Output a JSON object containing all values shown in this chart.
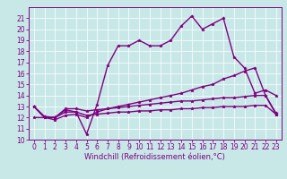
{
  "title": "",
  "xlabel": "Windchill (Refroidissement éolien,°C)",
  "ylabel": "",
  "background_color": "#c8e8e8",
  "line_color": "#800080",
  "xlim": [
    -0.5,
    23.5
  ],
  "ylim": [
    10,
    22
  ],
  "yticks": [
    10,
    11,
    12,
    13,
    14,
    15,
    16,
    17,
    18,
    19,
    20,
    21
  ],
  "xticks": [
    0,
    1,
    2,
    3,
    4,
    5,
    6,
    7,
    8,
    9,
    10,
    11,
    12,
    13,
    14,
    15,
    16,
    17,
    18,
    19,
    20,
    21,
    22,
    23
  ],
  "lines": [
    {
      "x": [
        0,
        1,
        2,
        3,
        4,
        5,
        6,
        7,
        8,
        9,
        10,
        11,
        12,
        13,
        14,
        15,
        16,
        17,
        18,
        19,
        20,
        21,
        22,
        23
      ],
      "y": [
        13,
        12,
        12,
        12.7,
        12.5,
        10.5,
        13.2,
        16.7,
        18.5,
        18.5,
        19,
        18.5,
        18.5,
        19,
        20.3,
        21.2,
        20,
        20.5,
        21,
        17.5,
        16.5,
        14.2,
        14.5,
        14
      ]
    },
    {
      "x": [
        0,
        1,
        2,
        3,
        4,
        5,
        6,
        7,
        8,
        9,
        10,
        11,
        12,
        13,
        14,
        15,
        16,
        17,
        18,
        19,
        20,
        21,
        22,
        23
      ],
      "y": [
        12,
        12,
        11.8,
        12.2,
        12.3,
        12.0,
        12.5,
        12.8,
        13.0,
        13.2,
        13.4,
        13.6,
        13.8,
        14.0,
        14.2,
        14.5,
        14.8,
        15.0,
        15.5,
        15.8,
        16.2,
        16.5,
        14.0,
        12.3
      ]
    },
    {
      "x": [
        0,
        1,
        2,
        3,
        4,
        5,
        6,
        7,
        8,
        9,
        10,
        11,
        12,
        13,
        14,
        15,
        16,
        17,
        18,
        19,
        20,
        21,
        22,
        23
      ],
      "y": [
        13,
        12,
        12,
        12.5,
        12.5,
        12.2,
        12.3,
        12.4,
        12.5,
        12.5,
        12.6,
        12.6,
        12.7,
        12.7,
        12.8,
        12.8,
        12.9,
        12.9,
        13.0,
        13.0,
        13.0,
        13.1,
        13.1,
        12.3
      ]
    },
    {
      "x": [
        0,
        1,
        2,
        3,
        4,
        5,
        6,
        7,
        8,
        9,
        10,
        11,
        12,
        13,
        14,
        15,
        16,
        17,
        18,
        19,
        20,
        21,
        22,
        23
      ],
      "y": [
        13,
        12.1,
        12.0,
        12.8,
        12.8,
        12.6,
        12.7,
        12.8,
        12.9,
        13.0,
        13.1,
        13.2,
        13.3,
        13.4,
        13.5,
        13.5,
        13.6,
        13.7,
        13.8,
        13.8,
        13.9,
        14.0,
        14.0,
        12.4
      ]
    }
  ],
  "tick_fontsize": 5.5,
  "xlabel_fontsize": 6,
  "marker": "*",
  "markersize": 2.5,
  "linewidth": 1.0
}
